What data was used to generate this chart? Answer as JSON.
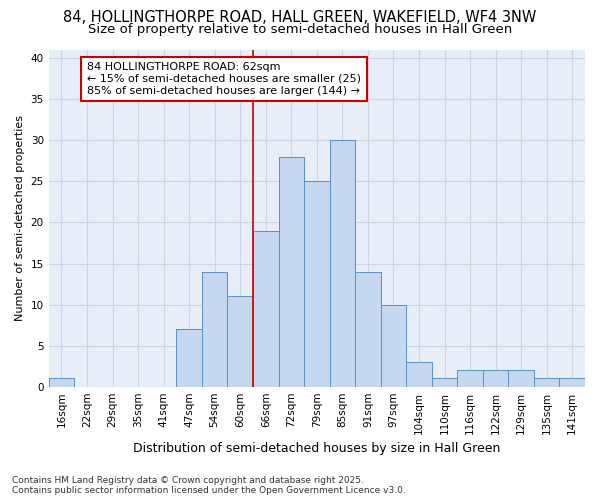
{
  "title_line1": "84, HOLLINGTHORPE ROAD, HALL GREEN, WAKEFIELD, WF4 3NW",
  "title_line2": "Size of property relative to semi-detached houses in Hall Green",
  "xlabel": "Distribution of semi-detached houses by size in Hall Green",
  "ylabel": "Number of semi-detached properties",
  "categories": [
    "16sqm",
    "22sqm",
    "29sqm",
    "35sqm",
    "41sqm",
    "47sqm",
    "54sqm",
    "60sqm",
    "66sqm",
    "72sqm",
    "79sqm",
    "85sqm",
    "91sqm",
    "97sqm",
    "104sqm",
    "110sqm",
    "116sqm",
    "122sqm",
    "129sqm",
    "135sqm",
    "141sqm"
  ],
  "values": [
    1,
    0,
    0,
    0,
    0,
    7,
    14,
    11,
    19,
    28,
    25,
    30,
    14,
    10,
    3,
    1,
    2,
    2,
    2,
    1,
    1
  ],
  "bar_color": "#c5d8f0",
  "bar_edge_color": "#5a8fc0",
  "annotation_text": "84 HOLLINGTHORPE ROAD: 62sqm\n← 15% of semi-detached houses are smaller (25)\n85% of semi-detached houses are larger (144) →",
  "annotation_box_color": "#ffffff",
  "annotation_box_edge": "#cc0000",
  "red_line_color": "#cc0000",
  "red_line_index": 7.5,
  "ylim": [
    0,
    41
  ],
  "yticks": [
    0,
    5,
    10,
    15,
    20,
    25,
    30,
    35,
    40
  ],
  "plot_bg_color": "#e8eef8",
  "fig_bg_color": "#ffffff",
  "grid_color": "#c8d4e8",
  "footer_text": "Contains HM Land Registry data © Crown copyright and database right 2025.\nContains public sector information licensed under the Open Government Licence v3.0.",
  "title_fontsize": 10.5,
  "subtitle_fontsize": 9.5,
  "xlabel_fontsize": 9,
  "ylabel_fontsize": 8,
  "tick_fontsize": 7.5,
  "annot_fontsize": 8,
  "footer_fontsize": 6.5
}
